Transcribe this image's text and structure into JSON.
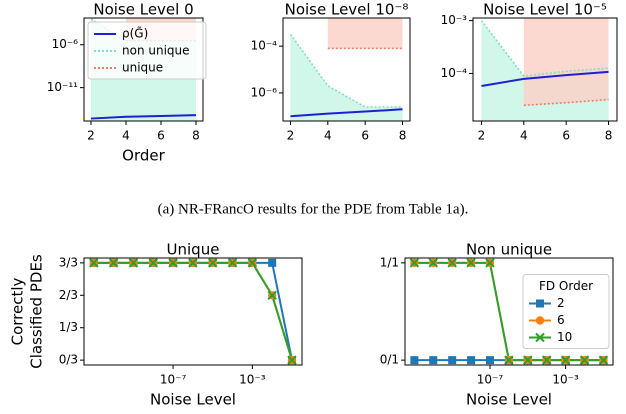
{
  "caption": "(a) NR-FRancO results for the PDE from Table 1a).",
  "chart_data": [
    {
      "type": "line",
      "title": "Noise Level 0",
      "xlabel": "Order",
      "x": [
        2,
        4,
        6,
        8
      ],
      "xlim": [
        1.6,
        8.4
      ],
      "xticks": [
        2,
        4,
        6,
        8
      ],
      "yscale": "log",
      "ylim": [
        1.3e-15,
        0.0013
      ],
      "yticks": [
        {
          "value": 1e-06,
          "label": "10⁻⁶"
        },
        {
          "value": 1e-11,
          "label": "10⁻¹¹"
        }
      ],
      "legend": "upper left",
      "series": [
        {
          "name": "non unique",
          "color": "#7fe0c0",
          "style": "dotted",
          "fill": "below",
          "fill_color": "#c9f5e6",
          "values": [
            0.001,
            3e-06,
            3e-06,
            3e-06
          ]
        },
        {
          "name": "unique",
          "color": "#f07a65",
          "style": "dotted",
          "fill": "above",
          "fill_color": "#fcd2c8",
          "values": [
            null,
            3e-06,
            3e-06,
            3e-06
          ]
        },
        {
          "name": "ρ(G̃)",
          "color": "#2020d0",
          "style": "solid",
          "values": [
            2.5e-15,
            4e-15,
            5e-15,
            6.3e-15
          ]
        }
      ]
    },
    {
      "type": "line",
      "title": "Noise Level 10⁻⁸",
      "x": [
        2,
        4,
        6,
        8
      ],
      "xlim": [
        1.6,
        8.4
      ],
      "xticks": [
        2,
        4,
        6,
        8
      ],
      "yscale": "log",
      "ylim": [
        6.3e-08,
        0.0016
      ],
      "yticks": [
        {
          "value": 0.0001,
          "label": "10⁻⁴"
        },
        {
          "value": 1e-06,
          "label": "10⁻⁶"
        }
      ],
      "series": [
        {
          "name": "non unique",
          "color": "#7fe0c0",
          "style": "dotted",
          "fill": "below",
          "fill_color": "#c9f5e6",
          "values": [
            0.00032,
            2e-06,
            2.5e-07,
            2.5e-07
          ]
        },
        {
          "name": "unique",
          "color": "#f07a65",
          "style": "dotted",
          "fill": "above",
          "fill_color": "#fcd2c8",
          "values": [
            null,
            8e-05,
            8e-05,
            8e-05
          ]
        },
        {
          "name": "ρ(G̃)",
          "color": "#2020d0",
          "style": "solid",
          "values": [
            1e-07,
            1.3e-07,
            1.6e-07,
            2e-07
          ]
        }
      ]
    },
    {
      "type": "line",
      "title": "Noise Level 10⁻⁵",
      "x": [
        2,
        4,
        6,
        8
      ],
      "xlim": [
        1.6,
        8.4
      ],
      "xticks": [
        2,
        4,
        6,
        8
      ],
      "yscale": "log",
      "ylim": [
        1.26e-05,
        0.00112
      ],
      "yticks": [
        {
          "value": 0.001,
          "label": "10⁻³"
        },
        {
          "value": 0.0001,
          "label": "10⁻⁴"
        }
      ],
      "series": [
        {
          "name": "non unique",
          "color": "#7fe0c0",
          "style": "dotted",
          "fill": "below",
          "fill_color": "#c9f5e6",
          "values": [
            0.001,
            8.9e-05,
            0.00011,
            0.000126
          ]
        },
        {
          "name": "unique",
          "color": "#f07a65",
          "style": "dotted",
          "fill": "above",
          "fill_color": "#fcd2c8",
          "values": [
            null,
            2.5e-05,
            2.8e-05,
            3.2e-05
          ]
        },
        {
          "name": "ρ(G̃)",
          "color": "#2020d0",
          "style": "solid",
          "values": [
            5.8e-05,
            7.9e-05,
            9.3e-05,
            0.000107
          ]
        }
      ]
    },
    {
      "type": "line",
      "title": "Unique",
      "xlabel": "Noise Level",
      "ylabel": [
        "Correctly",
        "Classified PDEs"
      ],
      "xscale": "log",
      "x": [
        1e-11,
        1e-10,
        1e-09,
        1e-08,
        1e-07,
        1e-06,
        1e-05,
        0.0001,
        0.001,
        0.01,
        0.1
      ],
      "xlim": [
        3.2e-12,
        0.32
      ],
      "xticks": [
        {
          "value": 1e-07,
          "label": "10⁻⁷"
        },
        {
          "value": 0.001,
          "label": "10⁻³"
        }
      ],
      "ylim": [
        -0.15,
        3.15
      ],
      "yticks": [
        {
          "value": 0,
          "label": "0/3"
        },
        {
          "value": 1,
          "label": "1/3"
        },
        {
          "value": 2,
          "label": "2/3"
        },
        {
          "value": 3,
          "label": "3/3"
        }
      ],
      "series": [
        {
          "name": "2",
          "color": "#1f77b4",
          "marker": "square",
          "values": [
            3,
            3,
            3,
            3,
            3,
            3,
            3,
            3,
            3,
            3,
            0
          ]
        },
        {
          "name": "6",
          "color": "#ff7f0e",
          "marker": "circle",
          "values": [
            3,
            3,
            3,
            3,
            3,
            3,
            3,
            3,
            3,
            2,
            0
          ]
        },
        {
          "name": "10",
          "color": "#2ca02c",
          "marker": "x",
          "values": [
            3,
            3,
            3,
            3,
            3,
            3,
            3,
            3,
            3,
            2,
            0
          ]
        }
      ]
    },
    {
      "type": "line",
      "title": "Non unique",
      "xlabel": "Noise Level",
      "xscale": "log",
      "x": [
        1e-11,
        1e-10,
        1e-09,
        1e-08,
        1e-07,
        1e-06,
        1e-05,
        0.0001,
        0.001,
        0.01,
        0.1
      ],
      "xlim": [
        3.2e-12,
        0.32
      ],
      "xticks": [
        {
          "value": 1e-07,
          "label": "10⁻⁷"
        },
        {
          "value": 0.001,
          "label": "10⁻³"
        }
      ],
      "ylim": [
        -0.05,
        1.05
      ],
      "yticks": [
        {
          "value": 0,
          "label": "0/1"
        },
        {
          "value": 1,
          "label": "1/1"
        }
      ],
      "legend": "center right",
      "legend_title": "FD Order",
      "series": [
        {
          "name": "2",
          "color": "#1f77b4",
          "marker": "square",
          "values": [
            0,
            0,
            0,
            0,
            0,
            0,
            0,
            0,
            0,
            0,
            0
          ]
        },
        {
          "name": "6",
          "color": "#ff7f0e",
          "marker": "circle",
          "values": [
            1,
            1,
            1,
            1,
            1,
            0,
            0,
            0,
            0,
            0,
            0
          ]
        },
        {
          "name": "10",
          "color": "#2ca02c",
          "marker": "x",
          "values": [
            1,
            1,
            1,
            1,
            1,
            0,
            0,
            0,
            0,
            0,
            0
          ]
        }
      ]
    }
  ]
}
